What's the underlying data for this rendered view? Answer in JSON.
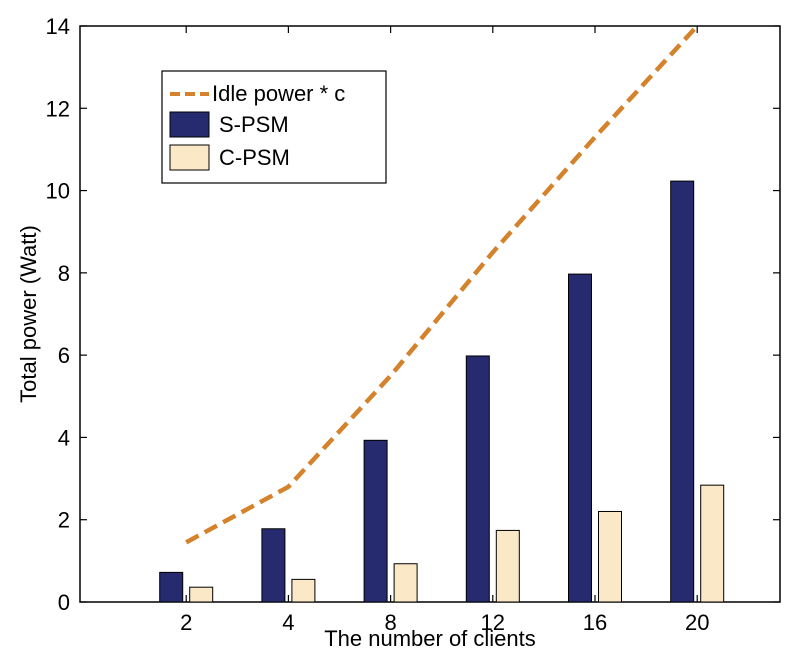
{
  "chart_data": {
    "type": "bar",
    "title": "",
    "xlabel": "The number of clients",
    "ylabel": "Total power (Watt)",
    "categories": [
      "2",
      "4",
      "8",
      "12",
      "16",
      "20"
    ],
    "ylim": [
      0,
      14
    ],
    "yticks": [
      "0",
      "2",
      "4",
      "6",
      "8",
      "10",
      "12",
      "14"
    ],
    "series": [
      {
        "name": "S-PSM",
        "kind": "bar",
        "color": "#262b6f",
        "values": [
          0.72,
          1.78,
          3.93,
          5.98,
          7.97,
          10.23
        ]
      },
      {
        "name": "C-PSM",
        "kind": "bar",
        "color": "#fbe8c7",
        "values": [
          0.36,
          0.55,
          0.93,
          1.74,
          2.2,
          2.84
        ]
      },
      {
        "name": "Idle power * c",
        "kind": "line",
        "color": "#d4822c",
        "dash": "dashed",
        "values": [
          1.45,
          2.8,
          5.5,
          8.5,
          11.3,
          14.0
        ]
      }
    ],
    "legend_position": "top-left",
    "grid": false
  }
}
